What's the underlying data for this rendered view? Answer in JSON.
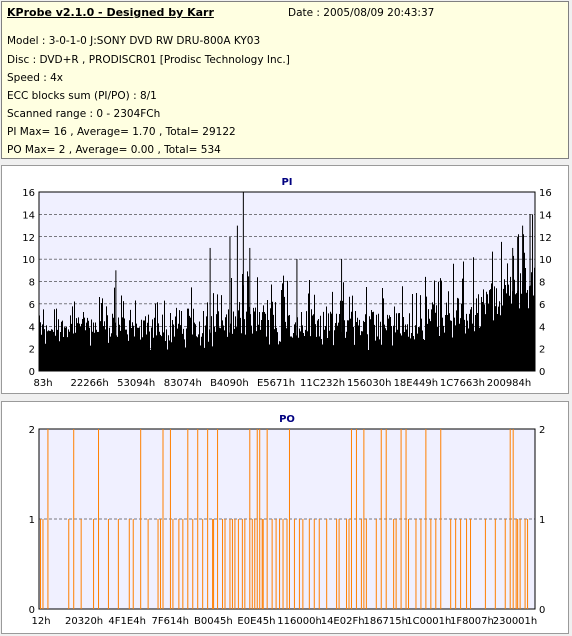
{
  "header": {
    "app_title": "KProbe v2.1.0 - Designed by Karr",
    "date": "Date : 2005/08/09 20:43:37",
    "lines": [
      "Model : 3-0-1-0 J:SONY    DVD RW DRU-800A  KY03",
      "Disc : DVD+R , PRODISCR01 [Prodisc Technology Inc.]",
      "Speed : 4x",
      "ECC blocks sum (PI/PO) : 8/1",
      "Scanned range : 0 - 2304FCh",
      "PI Max= 16 , Average= 1.70 , Total= 29122",
      "PO Max= 2 , Average= 0.00 , Total= 534"
    ]
  },
  "colors": {
    "header_bg": "#ffffe1",
    "plot_bg": "#f0f0ff",
    "pi_bar": "#000000",
    "po_bar": "#ff7f00",
    "title": "#000080",
    "gridline": "#000000"
  },
  "chart_data": [
    {
      "type": "bar",
      "title": "PI",
      "ylim": [
        0,
        16
      ],
      "yticks": [
        0,
        2,
        4,
        6,
        8,
        10,
        12,
        14,
        16
      ],
      "xticks": [
        "83h",
        "22266h",
        "53094h",
        "83074h",
        "B4090h",
        "E5671h",
        "11C232h",
        "156030h",
        "18E449h",
        "1C7663h",
        "200984h"
      ],
      "grid": true,
      "summary": {
        "max": 16,
        "average": 1.7,
        "total": 29122
      },
      "profile": [
        [
          0,
          3,
          6
        ],
        [
          0.05,
          3,
          7
        ],
        [
          0.1,
          3,
          7
        ],
        [
          0.15,
          3,
          8
        ],
        [
          0.2,
          3,
          7
        ],
        [
          0.25,
          3,
          8
        ],
        [
          0.3,
          3,
          9
        ],
        [
          0.35,
          3,
          8
        ],
        [
          0.4,
          3,
          9
        ],
        [
          0.45,
          3,
          10
        ],
        [
          0.5,
          3,
          9
        ],
        [
          0.55,
          3,
          9
        ],
        [
          0.6,
          3,
          8
        ],
        [
          0.65,
          3,
          9
        ],
        [
          0.7,
          3,
          8
        ],
        [
          0.75,
          3,
          8
        ],
        [
          0.8,
          4,
          9
        ],
        [
          0.85,
          4,
          10
        ],
        [
          0.9,
          5,
          11
        ],
        [
          0.95,
          6,
          12
        ],
        [
          1.0,
          7,
          13
        ]
      ],
      "spikes": [
        [
          0.412,
          16
        ],
        [
          0.4,
          13
        ],
        [
          0.385,
          12
        ],
        [
          0.425,
          11
        ],
        [
          0.345,
          11
        ],
        [
          0.155,
          9
        ],
        [
          0.61,
          10
        ],
        [
          0.52,
          10
        ],
        [
          0.955,
          11
        ],
        [
          0.965,
          12
        ],
        [
          0.975,
          13
        ],
        [
          0.99,
          14
        ],
        [
          0.995,
          14
        ]
      ]
    },
    {
      "type": "bar",
      "title": "PO",
      "ylim": [
        0,
        2
      ],
      "yticks": [
        0,
        1,
        2
      ],
      "xticks": [
        "12h",
        "20320h",
        "4F1E4h",
        "7F614h",
        "B0045h",
        "E0E45h",
        "116000h",
        "14E02Fh",
        "186715h",
        "1C0001h",
        "1F8007h",
        "230001h"
      ],
      "grid": true,
      "summary": {
        "max": 2,
        "average": 0.0,
        "total": 534
      },
      "level2_x": [
        0.018,
        0.07,
        0.12,
        0.205,
        0.25,
        0.265,
        0.3,
        0.32,
        0.34,
        0.36,
        0.425,
        0.44,
        0.445,
        0.46,
        0.505,
        0.63,
        0.64,
        0.655,
        0.69,
        0.7,
        0.73,
        0.74,
        0.78,
        0.81,
        0.95,
        0.956
      ],
      "level1_x": [
        0.003,
        0.008,
        0.06,
        0.085,
        0.11,
        0.14,
        0.16,
        0.182,
        0.19,
        0.22,
        0.24,
        0.245,
        0.27,
        0.282,
        0.29,
        0.31,
        0.33,
        0.35,
        0.352,
        0.37,
        0.375,
        0.385,
        0.39,
        0.395,
        0.402,
        0.41,
        0.415,
        0.43,
        0.435,
        0.45,
        0.452,
        0.47,
        0.478,
        0.485,
        0.492,
        0.5,
        0.515,
        0.525,
        0.532,
        0.545,
        0.555,
        0.565,
        0.58,
        0.6,
        0.605,
        0.62,
        0.625,
        0.65,
        0.66,
        0.68,
        0.715,
        0.72,
        0.745,
        0.76,
        0.77,
        0.79,
        0.8,
        0.83,
        0.84,
        0.85,
        0.862,
        0.87,
        0.9,
        0.92,
        0.94,
        0.962,
        0.965,
        0.97,
        0.98,
        0.985
      ]
    }
  ]
}
